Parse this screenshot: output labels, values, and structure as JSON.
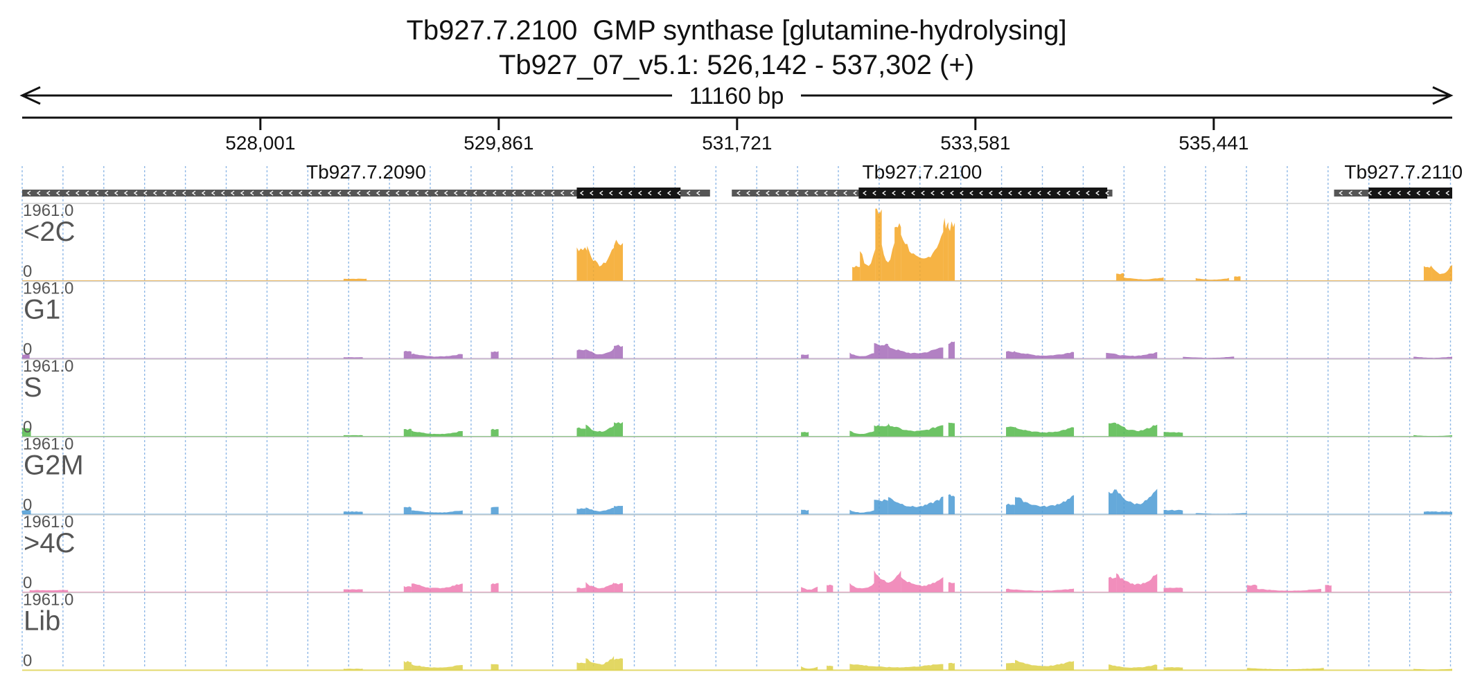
{
  "header": {
    "title_line1": "Tb927.7.2100  GMP synthase [glutamine-hydrolysing]",
    "title_line2": "Tb927_07_v5.1: 526,142 - 537,302 (+)",
    "span_label": "11160 bp"
  },
  "chart_data": {
    "type": "area",
    "region": {
      "chrom": "Tb927_07_v5.1",
      "start": 526142,
      "end": 537302,
      "strand": "+"
    },
    "axis": {
      "ticks": [
        528001,
        529861,
        531721,
        533581,
        535441
      ],
      "tick_labels": [
        "528,001",
        "529,861",
        "531,721",
        "533,581",
        "535,441"
      ]
    },
    "grid": true,
    "genes": [
      {
        "name": "Tb927.7.2090",
        "strand": "-",
        "start": 526142,
        "end": 531510,
        "cds_start": 530470,
        "cds_end": 531280
      },
      {
        "name": "Tb927.7.2100",
        "strand": "-",
        "start": 531680,
        "end": 534650,
        "cds_start": 532670,
        "cds_end": 534610
      },
      {
        "name": "Tb927.7.2110",
        "strand": "-",
        "start": 536380,
        "end": 537302,
        "cds_start": 536650,
        "cds_end": 537380
      }
    ],
    "tracks": [
      {
        "name": "<2C",
        "color": "#f5a623",
        "max": "1961.0",
        "min": "0"
      },
      {
        "name": "G1",
        "color": "#a56bb8",
        "max": "1961.0",
        "min": "0"
      },
      {
        "name": "S",
        "color": "#54b84a",
        "max": "1961.0",
        "min": "0"
      },
      {
        "name": "G2M",
        "color": "#4a9ad4",
        "max": "1961.0",
        "min": "0"
      },
      {
        "name": ">4C",
        "color": "#ee7ab0",
        "max": "1961.0",
        "min": "0"
      },
      {
        "name": "Lib",
        "color": "#ddd048",
        "max": "1961.0",
        "min": "0"
      }
    ]
  }
}
